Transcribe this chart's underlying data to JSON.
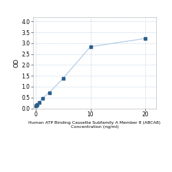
{
  "x": [
    0,
    0.156,
    0.313,
    0.625,
    1.25,
    2.5,
    5,
    10,
    20
  ],
  "y": [
    0.1,
    0.13,
    0.18,
    0.28,
    0.45,
    0.72,
    1.38,
    2.84,
    3.22
  ],
  "line_color": "#b8d0e8",
  "marker_color": "#2e5f8a",
  "marker_size": 3.5,
  "line_width": 1.0,
  "xlabel_line1": "Human ATP Binding Cassette Subfamily A Member 8 (ABCA8)",
  "xlabel_line2": "Concentration (ng/ml)",
  "ylabel": "OD",
  "ylim": [
    0,
    4.2
  ],
  "xlim": [
    -0.5,
    22
  ],
  "yticks": [
    0,
    0.5,
    1,
    1.5,
    2,
    2.5,
    3,
    3.5,
    4
  ],
  "xticks": [
    0,
    10,
    20
  ],
  "grid_color": "#c8d8e8",
  "background_color": "#ffffff",
  "xlabel_fontsize": 4.5,
  "ylabel_fontsize": 6,
  "tick_fontsize": 5.5
}
